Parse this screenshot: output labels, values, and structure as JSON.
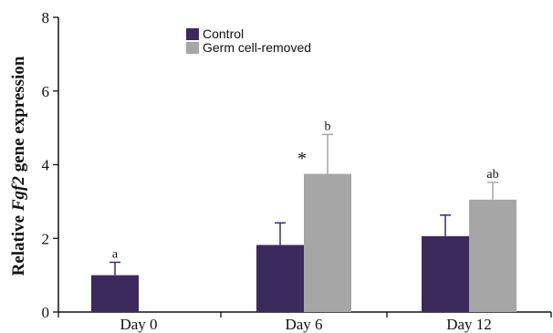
{
  "chart_data": {
    "type": "bar",
    "categories": [
      "Day 0",
      "Day 6",
      "Day 12"
    ],
    "series": [
      {
        "name": "Control",
        "color": "#3d2a5c",
        "values": [
          1.0,
          1.82,
          2.06
        ],
        "errors": [
          0.35,
          0.6,
          0.57
        ],
        "labels": [
          "a",
          "",
          ""
        ]
      },
      {
        "name": "Germ cell-removed",
        "color": "#a6a6a6",
        "values": [
          null,
          3.75,
          3.05
        ],
        "errors": [
          null,
          1.07,
          0.47
        ],
        "labels": [
          "",
          "b",
          "ab"
        ]
      }
    ],
    "significance": [
      {
        "category": "Day 6",
        "text": "*"
      }
    ],
    "ylabel": {
      "prefix": "Relative ",
      "italic": "Fgf2",
      "suffix": " gene expression"
    },
    "ylim": [
      0,
      8
    ],
    "yticks": [
      "0",
      "2",
      "4",
      "6",
      "8"
    ],
    "grid": false,
    "legend_position": "top-center"
  }
}
